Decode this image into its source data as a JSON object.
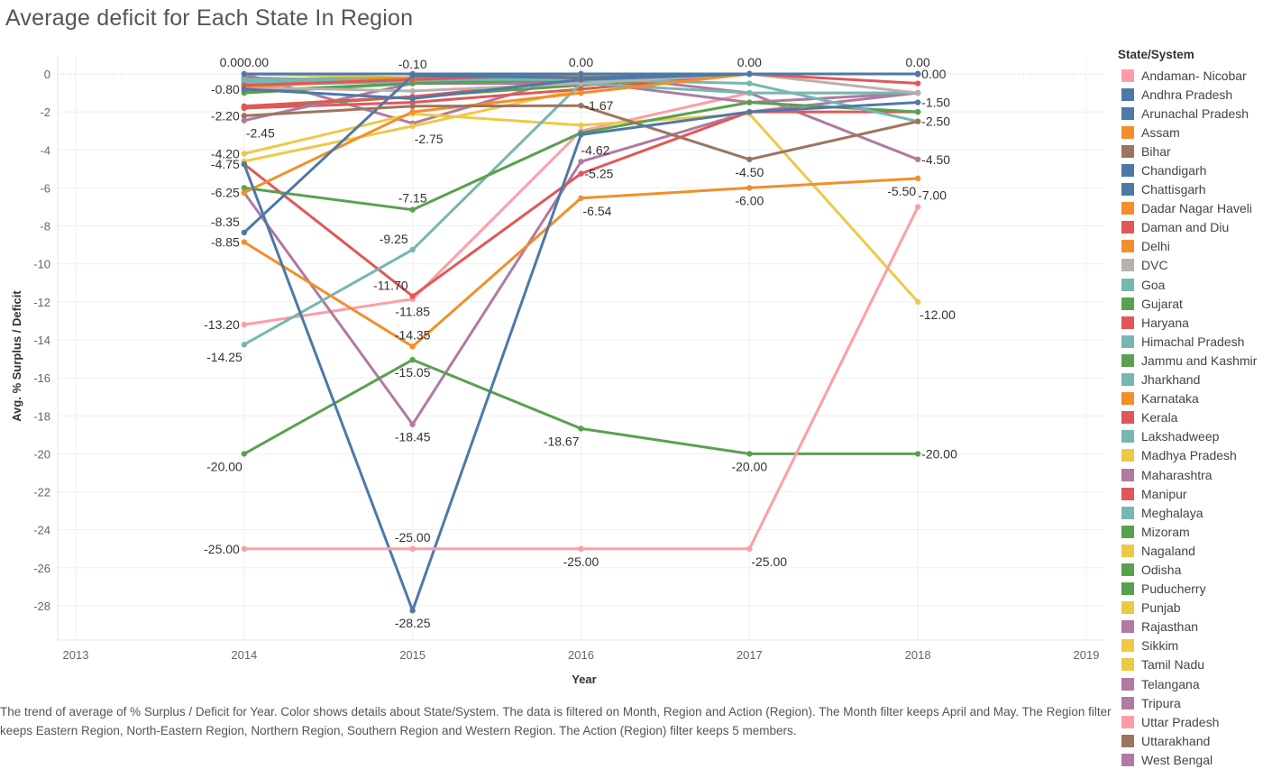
{
  "chart_data": {
    "type": "line",
    "title": "Average deficit for Each State In Region",
    "xlabel": "Year",
    "ylabel": "Avg. % Surplus / Deficit",
    "x_ticks": [
      "2013",
      "2014",
      "2015",
      "2016",
      "2017",
      "2018",
      "2019"
    ],
    "xlim": [
      2013,
      2019
    ],
    "y_ticks": [
      0,
      -2,
      -4,
      -6,
      -8,
      -10,
      -12,
      -14,
      -16,
      -18,
      -20,
      -22,
      -24,
      -26,
      -28
    ],
    "y_tick_labels": [
      "0",
      "-2",
      "-4",
      "-6",
      "-8",
      "-10",
      "-12",
      "-14",
      "-16",
      "-18",
      "-20",
      "-22",
      "-24",
      "-26",
      "-28"
    ],
    "ylim": [
      -29.5,
      1
    ],
    "grid": true,
    "legend_title": "State/System",
    "legend_position": "right",
    "x": [
      2014,
      2015,
      2016,
      2017,
      2018
    ],
    "series": [
      {
        "name": "Andaman- Nicobar",
        "color": "#FF9DA7",
        "values": [
          -25.0,
          -25.0,
          -25.0,
          -25.0,
          -7.0
        ]
      },
      {
        "name": "Andhra Pradesh",
        "color": "#4E79A7",
        "values": [
          0.0,
          0.0,
          0.0,
          0.0,
          0.0
        ]
      },
      {
        "name": "Arunachal Pradesh",
        "color": "#4E79A7",
        "values": [
          -4.75,
          -28.25,
          -3.2,
          -2.0,
          -1.5
        ]
      },
      {
        "name": "Assam",
        "color": "#F28E2B",
        "values": [
          -8.85,
          -14.35,
          -6.54,
          -6.0,
          -5.5
        ]
      },
      {
        "name": "Bihar",
        "color": "#9C755F",
        "values": [
          -2.2,
          -1.7,
          -1.67,
          -4.5,
          -2.5
        ]
      },
      {
        "name": "Chandigarh",
        "color": "#4E79A7",
        "values": [
          -0.8,
          -1.3,
          -0.3,
          0.0,
          0.0
        ]
      },
      {
        "name": "Chattisgarh",
        "color": "#4E79A7",
        "values": [
          -8.35,
          -0.1,
          -0.2,
          0.0,
          0.0
        ]
      },
      {
        "name": "Dadar Nagar Haveli",
        "color": "#F28E2B",
        "values": [
          -6.25,
          -2.0,
          -1.0,
          0.0,
          0.0
        ]
      },
      {
        "name": "Daman and Diu",
        "color": "#E15759",
        "values": [
          -0.6,
          -0.3,
          0.0,
          0.0,
          -0.5
        ]
      },
      {
        "name": "Delhi",
        "color": "#F28E2B",
        "values": [
          -0.7,
          -0.2,
          -0.1,
          0.0,
          0.0
        ]
      },
      {
        "name": "DVC",
        "color": "#BAB0AC",
        "values": [
          -0.7,
          -0.9,
          -0.5,
          0.0,
          -1.0
        ]
      },
      {
        "name": "Goa",
        "color": "#76B7B2",
        "values": [
          -0.4,
          -0.3,
          -0.3,
          -0.5,
          -2.5
        ]
      },
      {
        "name": "Gujarat",
        "color": "#59A14F",
        "values": [
          -1.0,
          -0.5,
          -0.3,
          0.0,
          0.0
        ]
      },
      {
        "name": "Haryana",
        "color": "#E15759",
        "values": [
          -1.7,
          -1.2,
          -0.3,
          0.0,
          0.0
        ]
      },
      {
        "name": "Himachal Pradesh",
        "color": "#76B7B2",
        "values": [
          -0.5,
          -0.4,
          -0.2,
          0.0,
          0.0
        ]
      },
      {
        "name": "Jammu and Kashmir",
        "color": "#59A14F",
        "values": [
          -6.0,
          -7.15,
          -3.1,
          -1.5,
          -2.0
        ]
      },
      {
        "name": "Jharkhand",
        "color": "#76B7B2",
        "values": [
          -14.25,
          -9.25,
          -0.5,
          -1.0,
          -1.0
        ]
      },
      {
        "name": "Karnataka",
        "color": "#F28E2B",
        "values": [
          -0.5,
          -0.2,
          0.0,
          0.0,
          0.0
        ]
      },
      {
        "name": "Kerala",
        "color": "#E15759",
        "values": [
          -4.75,
          -11.7,
          -5.25,
          -2.0,
          -2.0
        ]
      },
      {
        "name": "Lakshadweep",
        "color": "#76B7B2",
        "values": [
          -0.3,
          -0.2,
          -0.1,
          0.0,
          0.0
        ]
      },
      {
        "name": "Madhya Pradesh",
        "color": "#EDC948",
        "values": [
          -4.2,
          -2.1,
          -2.7,
          -2.1,
          -12.0
        ]
      },
      {
        "name": "Maharashtra",
        "color": "#B07AA1",
        "values": [
          -2.45,
          -0.5,
          -0.4,
          -1.5,
          -1.0
        ]
      },
      {
        "name": "Manipur",
        "color": "#E15759",
        "values": [
          -1.8,
          -1.5,
          -0.8,
          0.0,
          0.0
        ]
      },
      {
        "name": "Meghalaya",
        "color": "#76B7B2",
        "values": [
          -0.6,
          -0.4,
          -0.3,
          0.0,
          0.0
        ]
      },
      {
        "name": "Mizoram",
        "color": "#59A14F",
        "values": [
          -20.0,
          -15.05,
          -18.67,
          -20.0,
          -20.0
        ]
      },
      {
        "name": "Nagaland",
        "color": "#EDC948",
        "values": [
          -4.6,
          -2.75,
          -0.8,
          0.0,
          0.0
        ]
      },
      {
        "name": "Odisha",
        "color": "#59A14F",
        "values": [
          -1.8,
          -1.2,
          -0.6,
          0.0,
          0.0
        ]
      },
      {
        "name": "Puducherry",
        "color": "#59A14F",
        "values": [
          -0.9,
          -0.5,
          -0.2,
          0.0,
          0.0
        ]
      },
      {
        "name": "Punjab",
        "color": "#EDC948",
        "values": [
          0.0,
          -0.2,
          0.0,
          0.0,
          0.0
        ]
      },
      {
        "name": "Rajasthan",
        "color": "#B07AA1",
        "values": [
          -6.25,
          -18.45,
          -4.62,
          -2.0,
          -1.0
        ]
      },
      {
        "name": "Sikkim",
        "color": "#EDC948",
        "values": [
          -0.4,
          -0.3,
          -0.2,
          0.0,
          0.0
        ]
      },
      {
        "name": "Tamil Nadu",
        "color": "#EDC948",
        "values": [
          -0.5,
          -0.3,
          0.0,
          0.0,
          0.0
        ]
      },
      {
        "name": "Telangana",
        "color": "#B07AA1",
        "values": [
          0.0,
          -2.6,
          0.0,
          -1.0,
          -4.5
        ]
      },
      {
        "name": "Tripura",
        "color": "#B07AA1",
        "values": [
          -0.3,
          -0.5,
          -0.5,
          0.0,
          0.0
        ]
      },
      {
        "name": "Uttar Pradesh",
        "color": "#FF9DA7",
        "values": [
          -13.2,
          -11.85,
          -3.0,
          -1.0,
          -1.0
        ]
      },
      {
        "name": "Uttarakhand",
        "color": "#9C755F",
        "values": [
          -0.3,
          -0.2,
          0.0,
          0.0,
          0.0
        ]
      },
      {
        "name": "West Bengal",
        "color": "#B07AA1",
        "values": [
          -0.2,
          -0.4,
          -0.2,
          0.0,
          0.0
        ]
      }
    ],
    "data_labels": [
      {
        "x": 2014,
        "y": 0.0,
        "text": "0.000.00",
        "pos": "top"
      },
      {
        "x": 2014,
        "y": -0.8,
        "text": "-0.80",
        "pos": "left"
      },
      {
        "x": 2014,
        "y": -2.2,
        "text": "-2.20",
        "pos": "left"
      },
      {
        "x": 2014,
        "y": -2.45,
        "text": "-2.45",
        "pos": "below-right"
      },
      {
        "x": 2014,
        "y": -4.2,
        "text": "-4.20",
        "pos": "left"
      },
      {
        "x": 2014,
        "y": -4.75,
        "text": "-4.75",
        "pos": "left"
      },
      {
        "x": 2014,
        "y": -6.25,
        "text": "-6.25",
        "pos": "left"
      },
      {
        "x": 2014,
        "y": -8.35,
        "text": "-8.35",
        "pos": "left-above"
      },
      {
        "x": 2014,
        "y": -8.85,
        "text": "-8.85",
        "pos": "left"
      },
      {
        "x": 2014,
        "y": -13.2,
        "text": "-13.20",
        "pos": "left"
      },
      {
        "x": 2014,
        "y": -14.25,
        "text": "-14.25",
        "pos": "below-left"
      },
      {
        "x": 2014,
        "y": -20.0,
        "text": "-20.00",
        "pos": "below-left"
      },
      {
        "x": 2014,
        "y": -25.0,
        "text": "-25.00",
        "pos": "left"
      },
      {
        "x": 2015,
        "y": -0.1,
        "text": "-0.10",
        "pos": "top"
      },
      {
        "x": 2015,
        "y": -2.75,
        "text": "-2.75",
        "pos": "below-right"
      },
      {
        "x": 2015,
        "y": -7.15,
        "text": "-7.15",
        "pos": "top"
      },
      {
        "x": 2015,
        "y": -9.25,
        "text": "-9.25",
        "pos": "left-above"
      },
      {
        "x": 2015,
        "y": -11.7,
        "text": "-11.70",
        "pos": "left-above"
      },
      {
        "x": 2015,
        "y": -11.85,
        "text": "-11.85",
        "pos": "below"
      },
      {
        "x": 2015,
        "y": -14.35,
        "text": "-14.35",
        "pos": "top"
      },
      {
        "x": 2015,
        "y": -15.05,
        "text": "-15.05",
        "pos": "below"
      },
      {
        "x": 2015,
        "y": -18.45,
        "text": "-18.45",
        "pos": "below"
      },
      {
        "x": 2015,
        "y": -25.0,
        "text": "-25.00",
        "pos": "top"
      },
      {
        "x": 2015,
        "y": -28.25,
        "text": "-28.25",
        "pos": "below"
      },
      {
        "x": 2016,
        "y": 0.0,
        "text": "0.00",
        "pos": "top"
      },
      {
        "x": 2016,
        "y": -1.67,
        "text": "-1.67",
        "pos": "right"
      },
      {
        "x": 2016,
        "y": -4.62,
        "text": "-4.62",
        "pos": "above-right"
      },
      {
        "x": 2016,
        "y": -5.25,
        "text": "-5.25",
        "pos": "right"
      },
      {
        "x": 2016,
        "y": -6.54,
        "text": "-6.54",
        "pos": "below-right"
      },
      {
        "x": 2016,
        "y": -18.67,
        "text": "-18.67",
        "pos": "below-left"
      },
      {
        "x": 2016,
        "y": -25.0,
        "text": "-25.00",
        "pos": "below"
      },
      {
        "x": 2017,
        "y": 0.0,
        "text": "0.00",
        "pos": "top"
      },
      {
        "x": 2017,
        "y": -4.5,
        "text": "-4.50",
        "pos": "below"
      },
      {
        "x": 2017,
        "y": -6.0,
        "text": "-6.00",
        "pos": "below"
      },
      {
        "x": 2017,
        "y": -20.0,
        "text": "-20.00",
        "pos": "below"
      },
      {
        "x": 2017,
        "y": -25.0,
        "text": "-25.00",
        "pos": "below-right"
      },
      {
        "x": 2018,
        "y": 0.0,
        "text": "0.00",
        "pos": "top"
      },
      {
        "x": 2018,
        "y": 0.0,
        "text": "0.00",
        "pos": "right"
      },
      {
        "x": 2018,
        "y": -1.5,
        "text": "-1.50",
        "pos": "right"
      },
      {
        "x": 2018,
        "y": -2.5,
        "text": "-2.50",
        "pos": "right"
      },
      {
        "x": 2018,
        "y": -4.5,
        "text": "-4.50",
        "pos": "right"
      },
      {
        "x": 2018,
        "y": -5.5,
        "text": "-5.50",
        "pos": "below-left"
      },
      {
        "x": 2018,
        "y": -7.0,
        "text": "-7.00",
        "pos": "above-right"
      },
      {
        "x": 2018,
        "y": -12.0,
        "text": "-12.00",
        "pos": "below-right"
      },
      {
        "x": 2018,
        "y": -20.0,
        "text": "-20.00",
        "pos": "right"
      }
    ]
  },
  "caption": "The trend of average of % Surplus / Deficit for Year.  Color shows details about State/System. The data is filtered on Month, Region and Action (Region). The Month filter keeps April and May. The Region filter keeps Eastern Region, North-Eastern Region, Northern Region, Southern Region and Western Region. The Action (Region) filter keeps 5 members."
}
